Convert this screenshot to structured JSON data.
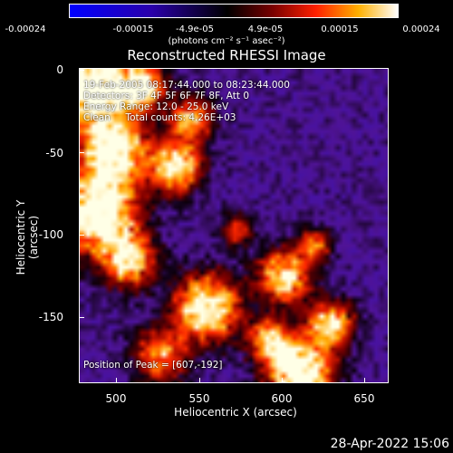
{
  "colorbar": {
    "ticks": [
      "-0.00024",
      "-0.00015",
      "-4.9e-05",
      "4.9e-05",
      "0.00015",
      "0.00024"
    ],
    "units": "(photons cm⁻² s⁻¹ asec⁻²)"
  },
  "title": "Reconstructed RHESSI Image",
  "annotations": {
    "time": "19-Feb-2005 08:17:44.000 to 08:23:44.000",
    "detectors": "Detectors: 3F 4F 5F 6F 7F 8F, Att 0",
    "energy": "Energy Range: 12.0 - 25.0 keV",
    "clean": "Clean     Total counts: 4.26E+03",
    "peak": "Position of Peak = [607,-192]"
  },
  "axes": {
    "xlabel": "Heliocentric X (arcsec)",
    "ylabel": "Heliocentric Y (arcsec)",
    "xticks": [
      "500",
      "550",
      "600",
      "650"
    ],
    "yticks": [
      "0",
      "-50",
      "-100",
      "-150"
    ]
  },
  "footer": {
    "timestamp": "28-Apr-2022 15:06"
  },
  "colors": {
    "low": "#0000ff",
    "mid": "#000000",
    "high": "#ffffff"
  }
}
